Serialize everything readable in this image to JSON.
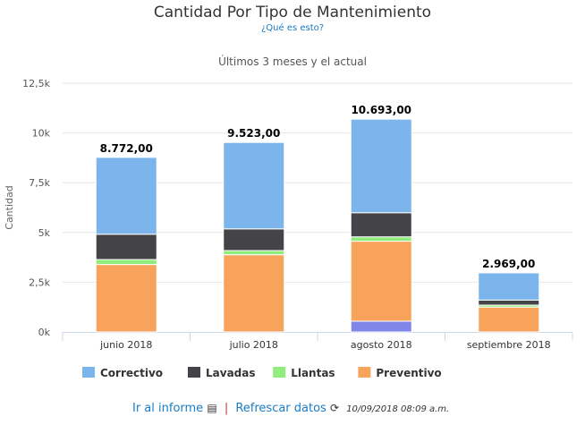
{
  "header": {
    "title": "Cantidad Por Tipo de Mantenimiento",
    "help_link": "¿Qué es esto?"
  },
  "footer": {
    "report_link": "Ir al informe",
    "report_icon": "list-icon",
    "separator": "|",
    "refresh_link": "Refrescar datos",
    "refresh_icon": "refresh-icon",
    "timestamp": "10/09/2018 08:09 a.m."
  },
  "chart_data": {
    "type": "bar",
    "stacked": true,
    "title": "Cantidad Por Tipo de Mantenimiento",
    "subtitle": "Últimos 3 meses y el actual",
    "xlabel": "",
    "ylabel": "Cantidad",
    "ylim": [
      0,
      12500
    ],
    "yticks": [
      0,
      2500,
      5000,
      7500,
      10000,
      12500
    ],
    "ytick_labels": [
      "0k",
      "2,5k",
      "5k",
      "7,5k",
      "10k",
      "12,5k"
    ],
    "categories": [
      "junio 2018",
      "julio 2018",
      "agosto 2018",
      "septiembre 2018"
    ],
    "series": [
      {
        "name": "Preventivo",
        "color": "#f7a35c",
        "values": [
          3390,
          3880,
          4020,
          1250
        ]
      },
      {
        "name": "Llantas",
        "color": "#90ed7d",
        "values": [
          250,
          210,
          220,
          100
        ]
      },
      {
        "name": "Lavadas",
        "color": "#434348",
        "values": [
          1270,
          1090,
          1210,
          250
        ]
      },
      {
        "name": "Correctivo",
        "color": "#7cb5ec",
        "values": [
          3862,
          4343,
          4703,
          1369
        ]
      },
      {
        "name": "",
        "color": "#8085e9",
        "values": [
          0,
          0,
          540,
          0
        ],
        "in_legend": false
      }
    ],
    "series_order_bottom_up": [
      "",
      "Preventivo",
      "Llantas",
      "Lavadas",
      "Correctivo"
    ],
    "totals": [
      "8.772,00",
      "9.523,00",
      "10.693,00",
      "2.969,00"
    ],
    "legend": [
      "Correctivo",
      "Lavadas",
      "Llantas",
      "Preventivo"
    ],
    "legend_position": "bottom-left",
    "grid": true
  }
}
